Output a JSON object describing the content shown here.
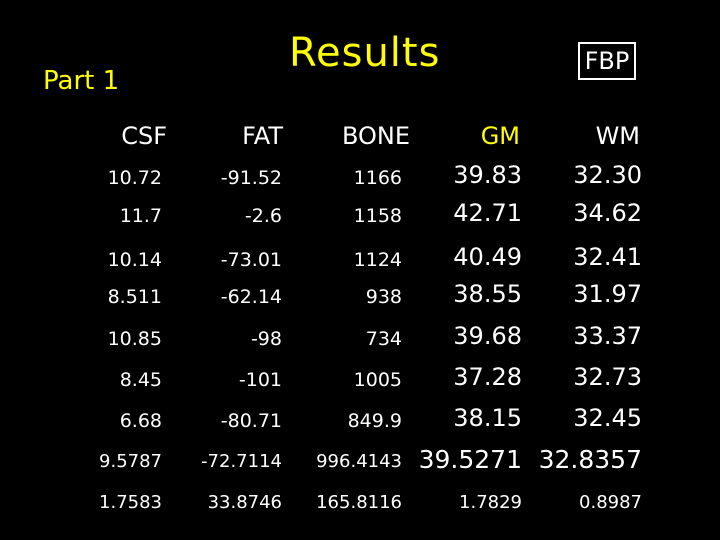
{
  "slide": {
    "title": "Results",
    "subtitle": "Part 1",
    "method_box": "FBP",
    "colors": {
      "background": "#000000",
      "title": "#ffff00",
      "gm_header": "#ffff00",
      "text": "#ffffff"
    }
  },
  "table": {
    "headers": [
      "CSF",
      "FAT",
      "BONE",
      "GM",
      "WM"
    ],
    "rows": [
      [
        "10.72",
        "-91.52",
        "1166",
        "39.83",
        "32.30"
      ],
      [
        "11.7",
        "-2.6",
        "1158",
        "42.71",
        "34.62"
      ],
      [
        "10.14",
        "-73.01",
        "1124",
        "40.49",
        "32.41"
      ],
      [
        "8.511",
        "-62.14",
        "938",
        "38.55",
        "31.97"
      ],
      [
        "10.85",
        "-98",
        "734",
        "39.68",
        "33.37"
      ],
      [
        "8.45",
        "-101",
        "1005",
        "37.28",
        "32.73"
      ],
      [
        "6.68",
        "-80.71",
        "849.9",
        "38.15",
        "32.45"
      ]
    ],
    "mean": [
      "9.5787",
      "-72.7114",
      "996.4143",
      "39.5271",
      "32.8357"
    ],
    "std": [
      "1.7583",
      "33.8746",
      "165.8116",
      "1.7829",
      "0.8987"
    ]
  }
}
